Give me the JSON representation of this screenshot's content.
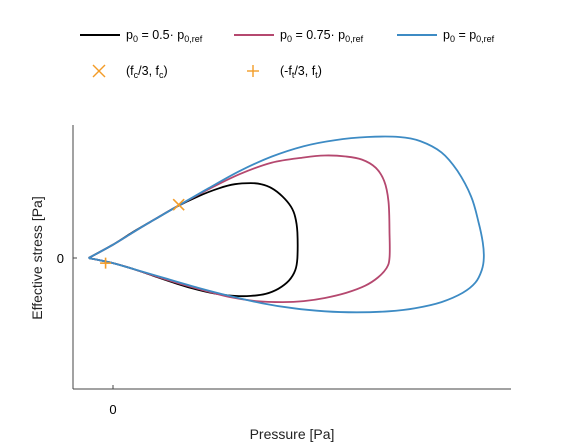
{
  "chart_data": {
    "type": "line",
    "xlabel": "Pressure [Pa]",
    "ylabel": "Effective stress [Pa]",
    "x_ticks": [
      "0"
    ],
    "y_ticks": [
      "0"
    ],
    "xlim": [
      -0.35,
      3.7
    ],
    "ylim": [
      -1.3,
      1.3
    ],
    "grid": false,
    "legend_position": "top",
    "series": [
      {
        "name_main": "p",
        "name_sub": "0",
        "name_rest": " = 0.5· p",
        "name_sub2": "0,ref",
        "name": "p0 = 0.5· p0,ref",
        "color": "#000000",
        "x": [
          -0.23,
          0.0,
          0.2,
          0.4,
          0.6,
          0.8,
          1.0,
          1.15,
          1.3,
          1.4,
          1.5,
          1.6,
          1.68,
          1.72,
          1.74,
          1.74,
          1.72,
          1.66,
          1.56,
          1.44,
          1.3,
          1.15,
          0.98,
          0.8,
          0.6,
          0.4,
          0.2,
          0.0,
          -0.23
        ],
        "y": [
          0.0,
          0.13,
          0.26,
          0.38,
          0.5,
          0.6,
          0.68,
          0.72,
          0.73,
          0.72,
          0.68,
          0.6,
          0.5,
          0.4,
          0.25,
          0.0,
          -0.12,
          -0.22,
          -0.3,
          -0.35,
          -0.37,
          -0.37,
          -0.35,
          -0.31,
          -0.25,
          -0.18,
          -0.11,
          -0.05,
          0.0
        ]
      },
      {
        "name_main": "p",
        "name_sub": "0",
        "name_rest": " = 0.75· p",
        "name_sub2": "0,ref",
        "name": "p0 = 0.75· p0,ref",
        "color": "#b5486f",
        "x": [
          -0.23,
          0.0,
          0.3,
          0.6,
          0.9,
          1.2,
          1.5,
          1.8,
          2.0,
          2.2,
          2.35,
          2.48,
          2.56,
          2.6,
          2.61,
          2.61,
          2.58,
          2.5,
          2.38,
          2.2,
          2.0,
          1.8,
          1.6,
          1.35,
          1.1,
          0.8,
          0.5,
          0.2,
          0.0,
          -0.23
        ],
        "y": [
          0.0,
          0.13,
          0.32,
          0.5,
          0.67,
          0.82,
          0.93,
          0.98,
          1.0,
          0.99,
          0.96,
          0.88,
          0.75,
          0.55,
          0.25,
          0.0,
          -0.1,
          -0.19,
          -0.27,
          -0.34,
          -0.39,
          -0.42,
          -0.43,
          -0.42,
          -0.38,
          -0.3,
          -0.21,
          -0.11,
          -0.05,
          0.0
        ]
      },
      {
        "name_main": "p",
        "name_sub": "0",
        "name_rest": " = p",
        "name_sub2": "0,ref",
        "name": "p0 = p0,ref",
        "color": "#3d8bc4",
        "x": [
          -0.23,
          0.0,
          0.3,
          0.6,
          0.9,
          1.2,
          1.5,
          1.8,
          2.1,
          2.4,
          2.7,
          2.9,
          3.1,
          3.25,
          3.38,
          3.45,
          3.49,
          3.5,
          3.48,
          3.42,
          3.3,
          3.1,
          2.85,
          2.6,
          2.3,
          2.0,
          1.7,
          1.4,
          1.1,
          0.8,
          0.5,
          0.2,
          0.0,
          -0.23
        ],
        "y": [
          0.0,
          0.13,
          0.32,
          0.5,
          0.68,
          0.85,
          0.99,
          1.09,
          1.15,
          1.18,
          1.18,
          1.14,
          1.03,
          0.85,
          0.6,
          0.35,
          0.15,
          0.0,
          -0.12,
          -0.24,
          -0.34,
          -0.43,
          -0.49,
          -0.52,
          -0.53,
          -0.52,
          -0.49,
          -0.44,
          -0.37,
          -0.29,
          -0.2,
          -0.11,
          -0.05,
          0.0
        ]
      }
    ],
    "markers": [
      {
        "label": "(fc/3, fc)",
        "label_parts": [
          "(f",
          "c",
          "/3, f",
          "c",
          ")"
        ],
        "symbol": "x",
        "color": "#f39c28",
        "x": 0.62,
        "y": 0.52
      },
      {
        "label": "(-ft/3, ft)",
        "label_parts": [
          "(-f",
          "t",
          "/3, f",
          "t",
          ")"
        ],
        "symbol": "+",
        "color": "#f39c28",
        "x": -0.07,
        "y": -0.05
      }
    ]
  }
}
